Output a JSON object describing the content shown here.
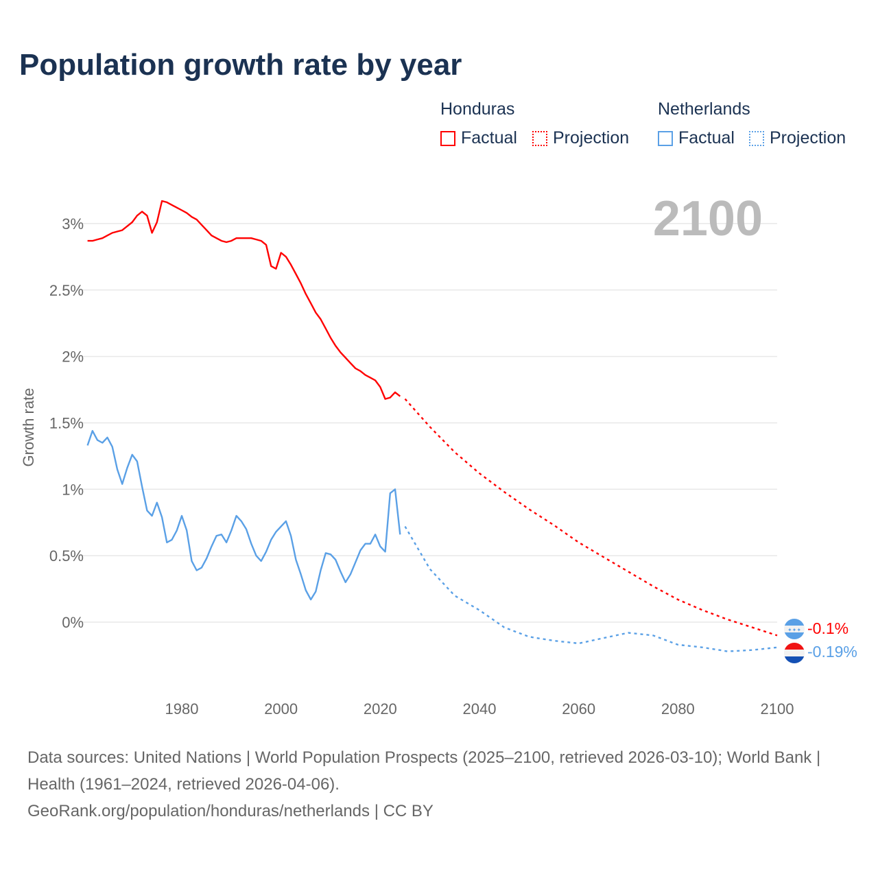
{
  "title": "Population growth rate by year",
  "legend": {
    "groups": [
      {
        "name": "Honduras",
        "factual": "Factual",
        "projection": "Projection",
        "color": "#ff0000"
      },
      {
        "name": "Netherlands",
        "factual": "Factual",
        "projection": "Projection",
        "color": "#5aa0e6"
      }
    ]
  },
  "current_year": "2100",
  "end_labels": {
    "honduras": "-0.1%",
    "netherlands": "-0.19%"
  },
  "icons": {
    "honduras": "honduras-flag-icon",
    "netherlands": "netherlands-flag-icon"
  },
  "chart_data": {
    "type": "line",
    "title": "Population growth rate by year",
    "ylabel": "Growth rate",
    "xlabel": "",
    "xlim": [
      1961,
      2100
    ],
    "ylim": [
      -0.45,
      3.35
    ],
    "xticks": [
      {
        "v": 1980,
        "label": "1980"
      },
      {
        "v": 2000,
        "label": "2000"
      },
      {
        "v": 2020,
        "label": "2020"
      },
      {
        "v": 2040,
        "label": "2040"
      },
      {
        "v": 2060,
        "label": "2060"
      },
      {
        "v": 2080,
        "label": "2080"
      },
      {
        "v": 2100,
        "label": "2100"
      }
    ],
    "yticks": [
      {
        "v": 0,
        "label": "0%"
      },
      {
        "v": 0.5,
        "label": "0.5%"
      },
      {
        "v": 1,
        "label": "1%"
      },
      {
        "v": 1.5,
        "label": "1.5%"
      },
      {
        "v": 2,
        "label": "2%"
      },
      {
        "v": 2.5,
        "label": "2.5%"
      },
      {
        "v": 3,
        "label": "3%"
      }
    ],
    "grid": true,
    "series": [
      {
        "name": "Honduras Factual",
        "color": "#ff0000",
        "dashed": false,
        "start": 1961,
        "values": [
          2.87,
          2.87,
          2.88,
          2.89,
          2.91,
          2.93,
          2.94,
          2.95,
          2.98,
          3.01,
          3.06,
          3.09,
          3.06,
          2.93,
          3.01,
          3.17,
          3.16,
          3.14,
          3.12,
          3.1,
          3.08,
          3.05,
          3.03,
          2.99,
          2.95,
          2.91,
          2.89,
          2.87,
          2.86,
          2.87,
          2.89,
          2.89,
          2.89,
          2.89,
          2.88,
          2.87,
          2.84,
          2.68,
          2.66,
          2.78,
          2.75,
          2.69,
          2.62,
          2.55,
          2.47,
          2.4,
          2.33,
          2.28,
          2.21,
          2.14,
          2.08,
          2.03,
          1.99,
          1.95,
          1.91,
          1.89,
          1.86,
          1.84,
          1.82,
          1.77,
          1.68,
          1.69,
          1.73,
          1.7
        ]
      },
      {
        "name": "Honduras Projection",
        "color": "#ff0000",
        "dashed": true,
        "start": 2025,
        "step": 5,
        "values": [
          1.68,
          1.47,
          1.28,
          1.12,
          0.98,
          0.85,
          0.73,
          0.6,
          0.49,
          0.38,
          0.27,
          0.17,
          0.09,
          0.02,
          -0.04,
          -0.1
        ]
      },
      {
        "name": "Netherlands Factual",
        "color": "#5aa0e6",
        "dashed": false,
        "start": 1961,
        "values": [
          1.33,
          1.44,
          1.37,
          1.35,
          1.39,
          1.32,
          1.15,
          1.04,
          1.16,
          1.26,
          1.21,
          1.02,
          0.84,
          0.8,
          0.9,
          0.79,
          0.6,
          0.62,
          0.69,
          0.8,
          0.69,
          0.46,
          0.39,
          0.41,
          0.48,
          0.57,
          0.65,
          0.66,
          0.6,
          0.69,
          0.8,
          0.76,
          0.7,
          0.59,
          0.5,
          0.46,
          0.53,
          0.62,
          0.68,
          0.72,
          0.76,
          0.65,
          0.47,
          0.36,
          0.24,
          0.17,
          0.23,
          0.39,
          0.52,
          0.51,
          0.47,
          0.38,
          0.3,
          0.36,
          0.45,
          0.54,
          0.59,
          0.59,
          0.66,
          0.57,
          0.53,
          0.97,
          1.0,
          0.66
        ]
      },
      {
        "name": "Netherlands Projection",
        "color": "#5aa0e6",
        "dashed": true,
        "start": 2025,
        "step": 5,
        "values": [
          0.72,
          0.4,
          0.2,
          0.09,
          -0.04,
          -0.11,
          -0.14,
          -0.16,
          -0.12,
          -0.08,
          -0.1,
          -0.17,
          -0.19,
          -0.22,
          -0.21,
          -0.19
        ]
      }
    ]
  },
  "footer": {
    "sources": "Data sources: United Nations | World Population Prospects (2025–2100, retrieved 2026-03-10); World Bank | Health (1961–2024, retrieved 2026-04-06).",
    "link": "GeoRank.org/population/honduras/netherlands | CC BY"
  }
}
